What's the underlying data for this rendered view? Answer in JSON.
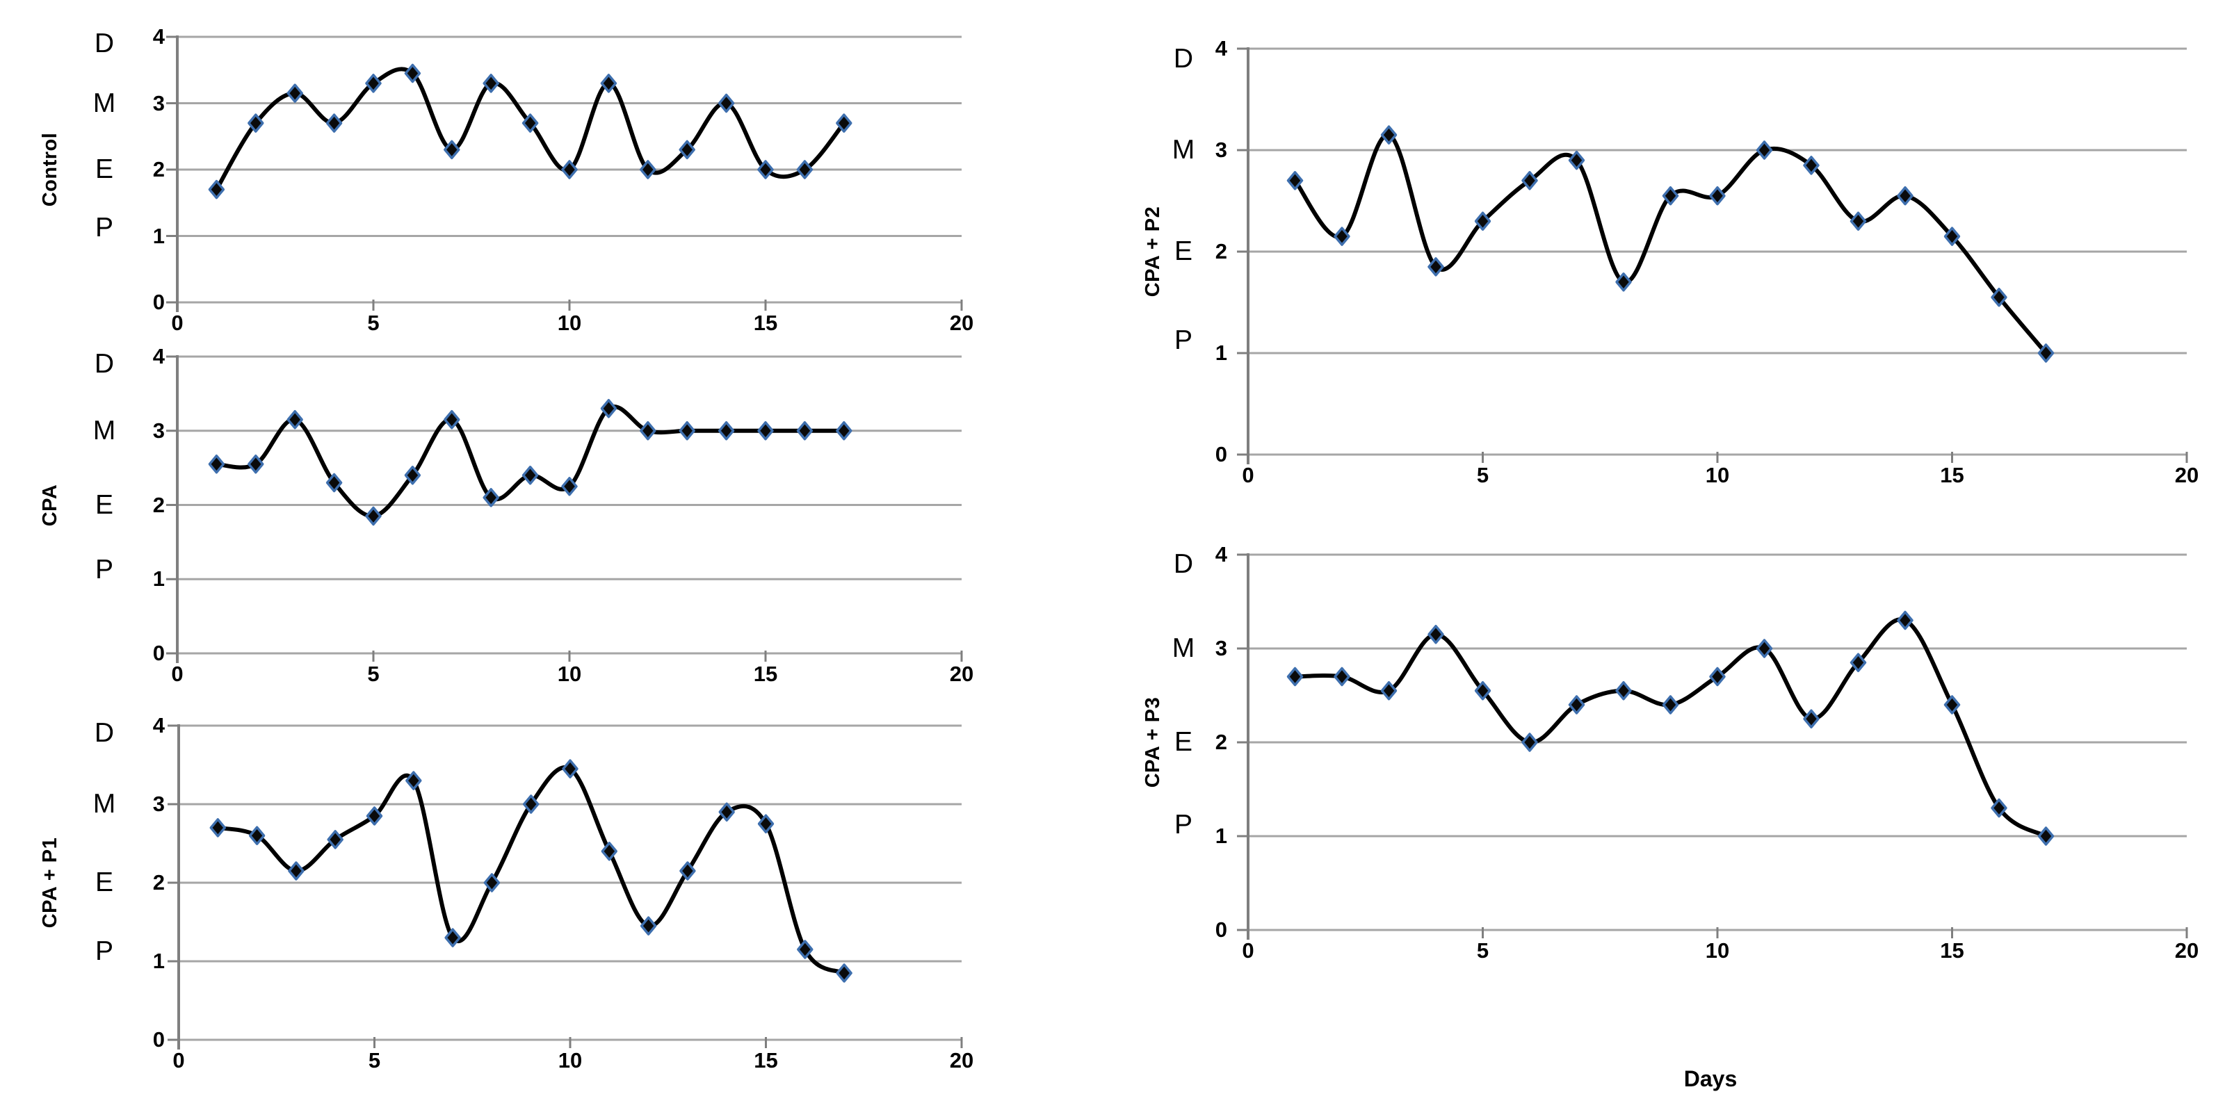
{
  "figure": {
    "xlabel": "Days",
    "stage_letters": [
      "D",
      "M",
      "E",
      "P"
    ],
    "y_tick_labels": [
      "4",
      "3",
      "2",
      "1",
      "0"
    ],
    "x_tick_labels": [
      "0",
      "5",
      "10",
      "15",
      "20"
    ],
    "colors": {
      "line": "#000000",
      "marker_fill": "#0a0a0a",
      "marker_stroke": "#3e6fae",
      "gridline": "#a6a6a6",
      "axis": "#7f7f7f",
      "text": "#000000"
    }
  },
  "chart_data": [
    {
      "type": "line",
      "title": "Control",
      "xlabel": "Days",
      "x": [
        1,
        2,
        3,
        4,
        5,
        6,
        7,
        8,
        9,
        10,
        11,
        12,
        13,
        14,
        15,
        16,
        17
      ],
      "values": [
        1.7,
        2.7,
        3.15,
        2.7,
        3.3,
        3.45,
        2.3,
        3.3,
        2.7,
        2.0,
        3.3,
        2.0,
        2.3,
        3.0,
        2.0,
        2.0,
        2.7
      ],
      "xlim": [
        0,
        20
      ],
      "ylim": [
        0,
        4
      ],
      "x_ticks": [
        0,
        5,
        10,
        15,
        20
      ],
      "y_ticks": [
        0,
        1,
        2,
        3,
        4
      ],
      "y_stage_labels": {
        "4": "D",
        "3": "M",
        "2": "E",
        "1": "P"
      },
      "grid": true,
      "legend": false,
      "marker": "diamond",
      "smooth": true
    },
    {
      "type": "line",
      "title": "CPA",
      "xlabel": "Days",
      "x": [
        1,
        2,
        3,
        4,
        5,
        6,
        7,
        8,
        9,
        10,
        11,
        12,
        13,
        14,
        15,
        16,
        17
      ],
      "values": [
        2.55,
        2.55,
        3.15,
        2.3,
        1.85,
        2.4,
        3.15,
        2.1,
        2.4,
        2.25,
        3.3,
        3.0,
        3.0,
        3.0,
        3.0,
        3.0,
        3.0
      ],
      "xlim": [
        0,
        20
      ],
      "ylim": [
        0,
        4
      ],
      "x_ticks": [
        0,
        5,
        10,
        15,
        20
      ],
      "y_ticks": [
        0,
        1,
        2,
        3,
        4
      ],
      "y_stage_labels": {
        "4": "D",
        "3": "M",
        "2": "E",
        "1": "P"
      },
      "grid": true,
      "legend": false,
      "marker": "diamond",
      "smooth": true
    },
    {
      "type": "line",
      "title": "CPA + P1",
      "xlabel": "Days",
      "x": [
        1,
        2,
        3,
        4,
        5,
        6,
        7,
        8,
        9,
        10,
        11,
        12,
        13,
        14,
        15,
        16,
        17
      ],
      "values": [
        2.7,
        2.6,
        2.15,
        2.55,
        2.85,
        3.3,
        1.3,
        2.0,
        3.0,
        3.45,
        2.4,
        1.45,
        2.15,
        2.9,
        2.75,
        1.15,
        0.85
      ],
      "xlim": [
        0,
        20
      ],
      "ylim": [
        0,
        4
      ],
      "x_ticks": [
        0,
        5,
        10,
        15,
        20
      ],
      "y_ticks": [
        0,
        1,
        2,
        3,
        4
      ],
      "y_stage_labels": {
        "4": "D",
        "3": "M",
        "2": "E",
        "1": "P"
      },
      "grid": true,
      "legend": false,
      "marker": "diamond",
      "smooth": true
    },
    {
      "type": "line",
      "title": "CPA + P2",
      "xlabel": "Days",
      "x": [
        1,
        2,
        3,
        4,
        5,
        6,
        7,
        8,
        9,
        10,
        11,
        12,
        13,
        14,
        15,
        16,
        17
      ],
      "values": [
        2.7,
        2.15,
        3.15,
        1.85,
        2.3,
        2.7,
        2.9,
        1.7,
        2.55,
        2.55,
        3.0,
        2.85,
        2.3,
        2.55,
        2.15,
        1.55,
        1.0
      ],
      "xlim": [
        0,
        20
      ],
      "ylim": [
        0,
        4
      ],
      "x_ticks": [
        0,
        5,
        10,
        15,
        20
      ],
      "y_ticks": [
        0,
        1,
        2,
        3,
        4
      ],
      "y_stage_labels": {
        "4": "D",
        "3": "M",
        "2": "E",
        "1": "P"
      },
      "grid": true,
      "legend": false,
      "marker": "diamond",
      "smooth": true
    },
    {
      "type": "line",
      "title": "CPA + P3",
      "xlabel": "Days",
      "x": [
        1,
        2,
        3,
        4,
        5,
        6,
        7,
        8,
        9,
        10,
        11,
        12,
        13,
        14,
        15,
        16,
        17
      ],
      "values": [
        2.7,
        2.7,
        2.55,
        3.15,
        2.55,
        2.0,
        2.4,
        2.55,
        2.4,
        2.7,
        3.0,
        2.25,
        2.85,
        3.3,
        2.4,
        1.3,
        1.0
      ],
      "xlim": [
        0,
        20
      ],
      "ylim": [
        0,
        4
      ],
      "x_ticks": [
        0,
        5,
        10,
        15,
        20
      ],
      "y_ticks": [
        0,
        1,
        2,
        3,
        4
      ],
      "y_stage_labels": {
        "4": "D",
        "3": "M",
        "2": "E",
        "1": "P"
      },
      "grid": true,
      "legend": false,
      "marker": "diamond",
      "smooth": true
    }
  ]
}
